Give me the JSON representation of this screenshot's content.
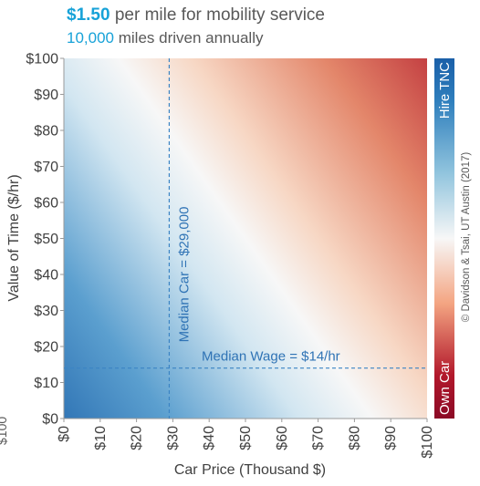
{
  "header": {
    "title_highlight": "$1.50",
    "title_rest": " per mile for mobility service",
    "subtitle_highlight": "10,000",
    "subtitle_rest": " miles driven annually"
  },
  "credit": "© Davidson & Tsai, UT Austin (2017)",
  "edge_artifact": "$100",
  "colors": {
    "own_car": "#b2182b",
    "neutral": "#f7f7f7",
    "hire_tnc": "#1a5fa8",
    "reference_line": "#3b84c4",
    "highlight": "#17a2d8"
  },
  "chart_data": {
    "type": "heatmap",
    "x": {
      "label": "Car Price (Thousand $)",
      "range": [
        0,
        100
      ],
      "ticks": [
        0,
        10,
        20,
        30,
        40,
        50,
        60,
        70,
        80,
        90,
        100
      ],
      "tick_labels": [
        "$0",
        "$10",
        "$20",
        "$30",
        "$40",
        "$50",
        "$60",
        "$70",
        "$80",
        "$90",
        "$100"
      ]
    },
    "y": {
      "label": "Value of Time ($/hr)",
      "range": [
        0,
        100
      ],
      "ticks": [
        0,
        10,
        20,
        30,
        40,
        50,
        60,
        70,
        80,
        90,
        100
      ],
      "tick_labels": [
        "$0",
        "$10",
        "$20",
        "$30",
        "$40",
        "$50",
        "$60",
        "$70",
        "$80",
        "$90",
        "$100"
      ]
    },
    "colorbar": {
      "low_label": "Own Car",
      "high_label": "Hire TNC"
    },
    "break_even_line": {
      "x_at_y0": 85,
      "x_at_y100": 15
    },
    "reference_lines": [
      {
        "orientation": "vertical",
        "value": 29,
        "label": "Median Car = $29,000"
      },
      {
        "orientation": "horizontal",
        "value": 14,
        "label": "Median Wage = $14/hr"
      }
    ]
  }
}
